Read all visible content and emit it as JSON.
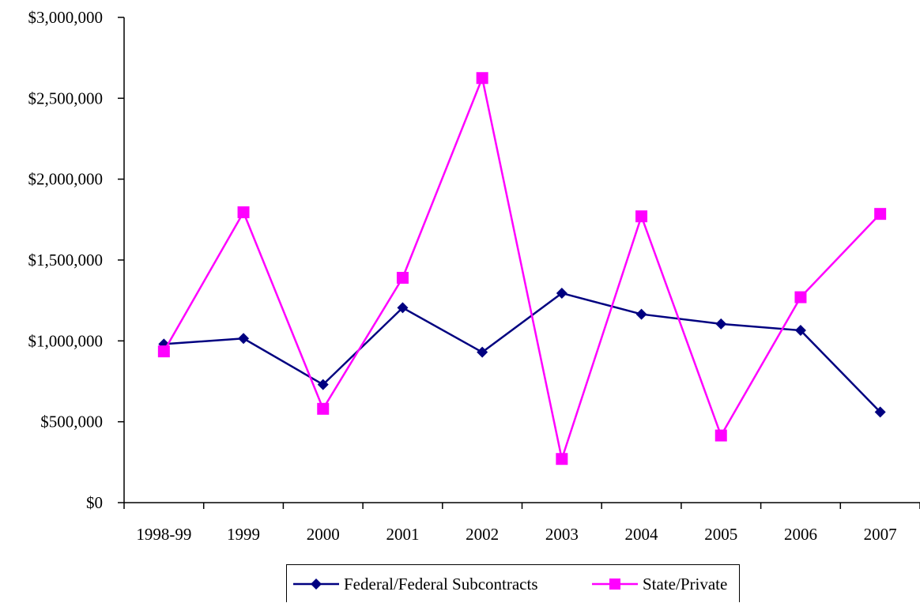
{
  "chart_data": {
    "type": "line",
    "categories": [
      "1998-99",
      "1999",
      "2000",
      "2001",
      "2002",
      "2003",
      "2004",
      "2005",
      "2006",
      "2007"
    ],
    "ylim": [
      0,
      3000000
    ],
    "ytick_values": [
      0,
      500000,
      1000000,
      1500000,
      2000000,
      2500000,
      3000000
    ],
    "ytick_labels": [
      "$0",
      "$500,000",
      "$1,000,000",
      "$1,500,000",
      "$2,000,000",
      "$2,500,000",
      "$3,000,000"
    ],
    "grid": false,
    "legend_position": "bottom",
    "series": [
      {
        "name": "Federal/Federal Subcontracts",
        "color": "#000080",
        "marker": "diamond",
        "values": [
          980000,
          1015000,
          730000,
          1205000,
          930000,
          1295000,
          1165000,
          1105000,
          1065000,
          560000
        ]
      },
      {
        "name": "State/Private",
        "color": "#FF00FF",
        "marker": "square",
        "values": [
          935000,
          1795000,
          580000,
          1390000,
          2625000,
          270000,
          1770000,
          415000,
          1270000,
          1785000
        ]
      }
    ]
  }
}
